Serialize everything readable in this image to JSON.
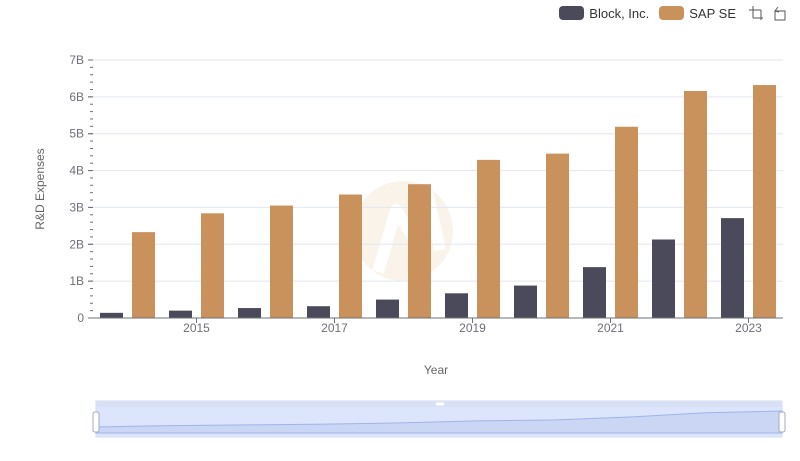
{
  "chart_data": {
    "type": "bar",
    "xlabel": "Year",
    "ylabel": "R&D Expenses",
    "ylim": [
      0,
      7000000000
    ],
    "y_ticks": [
      "0",
      "1B",
      "2B",
      "3B",
      "4B",
      "5B",
      "6B",
      "7B"
    ],
    "x_tick_labels": [
      "2015",
      "2017",
      "2019",
      "2021",
      "2023"
    ],
    "categories": [
      "2014",
      "2015",
      "2016",
      "2017",
      "2018",
      "2019",
      "2020",
      "2021",
      "2022",
      "2023"
    ],
    "series": [
      {
        "name": "Block, Inc.",
        "color": "#4a4a5a",
        "values": [
          140000000,
          200000000,
          270000000,
          320000000,
          500000000,
          670000000,
          880000000,
          1380000000,
          2130000000,
          2710000000
        ]
      },
      {
        "name": "SAP SE",
        "color": "#c9915c",
        "values": [
          2330000000,
          2840000000,
          3050000000,
          3350000000,
          3630000000,
          4290000000,
          4460000000,
          5190000000,
          6160000000,
          6320000000
        ]
      }
    ],
    "grid": true,
    "legend_position": "top-right",
    "datazoom_slider": true
  },
  "toolbox": {
    "zoom_icon": "zoom-icon",
    "restore_icon": "restore-icon"
  }
}
